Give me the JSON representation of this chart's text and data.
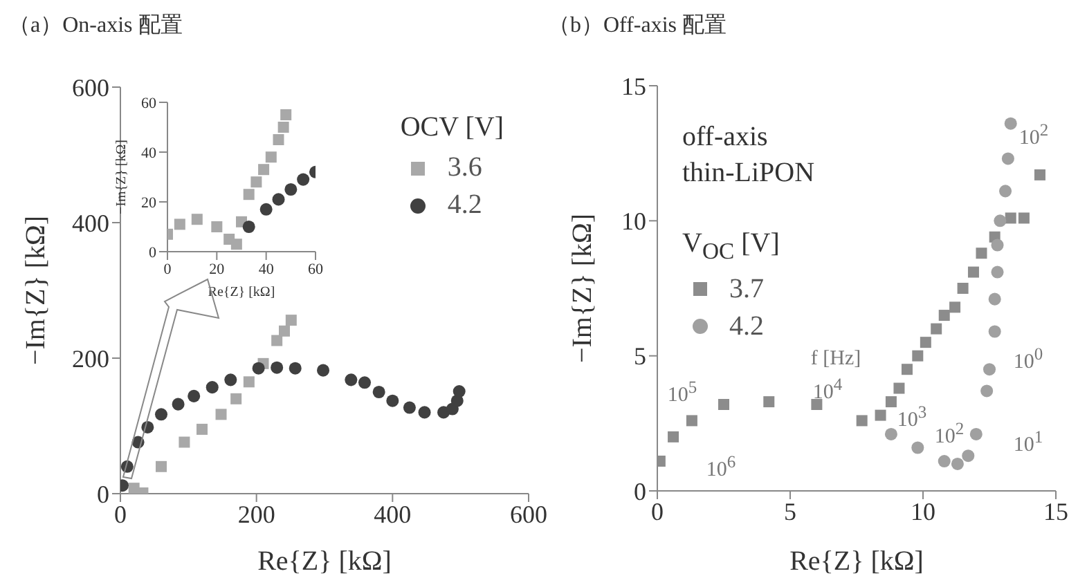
{
  "chart_data": [
    {
      "type": "scatter",
      "title": "（a）On-axis 配置",
      "xlabel": "Re{Z} [kΩ]",
      "ylabel": "−Im{Z} [kΩ]",
      "legend_title": "OCV [V]",
      "legend": "top right",
      "xlim": [
        0,
        600
      ],
      "ylim": [
        0,
        600
      ],
      "xticks": [
        0,
        200,
        400,
        600
      ],
      "yticks": [
        0,
        200,
        400,
        600
      ],
      "series": [
        {
          "name": "3.6",
          "color": "#a8a8a8",
          "marker": "square",
          "x": [
            20,
            33,
            60,
            94,
            120,
            148,
            170,
            189,
            210,
            230,
            241,
            251
          ],
          "values": [
            8,
            1,
            40,
            76,
            95,
            117,
            140,
            165,
            192,
            226,
            240,
            256
          ]
        },
        {
          "name": "4.2",
          "color": "#404040",
          "marker": "circle",
          "x": [
            3,
            10,
            26,
            40,
            60,
            85,
            108,
            135,
            162,
            203,
            230,
            257,
            298,
            339,
            359,
            380,
            400,
            425,
            447,
            475,
            488,
            495,
            498
          ],
          "values": [
            12,
            40,
            76,
            98,
            117,
            132,
            144,
            157,
            168,
            185,
            186,
            185,
            182,
            168,
            164,
            150,
            137,
            127,
            120,
            120,
            125,
            137,
            151
          ]
        }
      ]
    },
    {
      "type": "scatter",
      "xlabel": "Re{Z} [kΩ]",
      "ylabel": "−Im{Z} [kΩ]",
      "xlim": [
        0,
        60
      ],
      "ylim": [
        0,
        60
      ],
      "xticks": [
        0,
        20,
        40,
        60
      ],
      "yticks": [
        0,
        20,
        40,
        60
      ],
      "series": [
        {
          "color": "#a8a8a8",
          "marker": "square",
          "x": [
            0,
            5,
            12,
            20,
            25,
            28,
            30,
            33,
            36,
            39,
            42,
            45,
            47,
            48
          ],
          "values": [
            7,
            11,
            13,
            10,
            5,
            3,
            12,
            23,
            28,
            33,
            38,
            45,
            50,
            55
          ]
        },
        {
          "color": "#404040",
          "marker": "circle",
          "x": [
            33,
            40,
            45,
            50,
            55,
            60
          ],
          "values": [
            10,
            17,
            21,
            25,
            29,
            32
          ]
        }
      ]
    },
    {
      "type": "scatter",
      "title": "（b）Off-axis 配置",
      "xlabel": "Re{Z} [kΩ]",
      "ylabel": "−Im{Z} [kΩ]",
      "legend_title": "V$_{OC}$ [V]",
      "legend": "center left",
      "xlim": [
        0,
        15
      ],
      "ylim": [
        0,
        15
      ],
      "xticks": [
        0,
        5,
        10,
        15
      ],
      "yticks": [
        0,
        5,
        10,
        15
      ],
      "annotations": [
        "off-axis\nthin-LiPON",
        "10$^{6}$",
        "10$^{5}$",
        "f [Hz]",
        "10$^{4}$",
        "10$^{3}$",
        "10$^{2}$",
        "10$^{1}$",
        "10$^{0}$",
        "10$^{2}$"
      ],
      "series": [
        {
          "name": "3.7",
          "color": "#8c8c8c",
          "marker": "square",
          "x": [
            0.1,
            0.6,
            1.3,
            2.5,
            4.2,
            6,
            7.7,
            8.4,
            8.8,
            9.1,
            9.4,
            9.8,
            10.1,
            10.5,
            10.8,
            11.2,
            11.5,
            11.9,
            12.2,
            12.7,
            13.3,
            13.8,
            14.4
          ],
          "values": [
            1.1,
            2,
            2.6,
            3.2,
            3.3,
            3.2,
            2.6,
            2.8,
            3.3,
            3.8,
            4.5,
            5,
            5.5,
            6,
            6.5,
            6.8,
            7.5,
            8.1,
            8.8,
            9.4,
            10.1,
            10.1,
            11.7
          ]
        },
        {
          "name": "4.2",
          "color": "#a0a0a0",
          "marker": "circle",
          "x": [
            8.8,
            9.8,
            10.8,
            11.3,
            11.7,
            12,
            12.4,
            12.5,
            12.7,
            12.7,
            12.8,
            12.8,
            12.9,
            13.1,
            13.2,
            13.3
          ],
          "values": [
            2.1,
            1.6,
            1.1,
            1,
            1.3,
            2.1,
            3.7,
            4.5,
            5.9,
            7.1,
            8.1,
            9.1,
            10,
            11.1,
            12.3,
            13.6
          ]
        }
      ]
    }
  ]
}
